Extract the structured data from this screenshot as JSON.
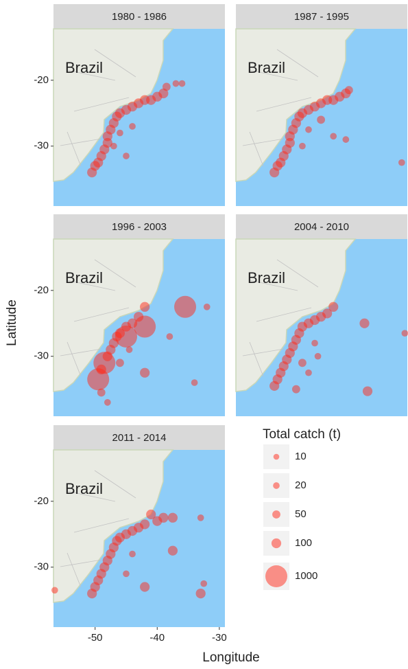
{
  "chart_data": {
    "type": "scatter",
    "x_label": "Longitude",
    "y_label": "Latitude",
    "xlim": [
      -56.7,
      -29.1
    ],
    "ylim": [
      -39.1,
      -12.2
    ],
    "xticks": [
      -50,
      -40,
      -30
    ],
    "yticks": [
      -20,
      -30
    ],
    "color": "#ff2a1a",
    "legend_title": "Total catch (t)",
    "legend_sizes": [
      10,
      20,
      50,
      100,
      1000
    ],
    "panels": [
      {
        "title": "1980 - 1986",
        "annotation": "Brazil",
        "x": [
          -50.5,
          -50,
          -49.5,
          -49,
          -48.5,
          -48,
          -48,
          -47.5,
          -47,
          -46.5,
          -46,
          -45,
          -44,
          -43,
          -42,
          -41,
          -40,
          -39,
          -38.5,
          -37,
          -36,
          -47,
          -46,
          -45,
          -44
        ],
        "y": [
          -34,
          -33,
          -32.5,
          -31.5,
          -30.5,
          -29.5,
          -28.5,
          -27.5,
          -26.5,
          -25.5,
          -25,
          -24.5,
          -24,
          -23.5,
          -23,
          -23,
          -22.5,
          -22,
          -21,
          -20.5,
          -20.5,
          -30,
          -28,
          -31.5,
          -27
        ],
        "sizes": [
          100,
          100,
          100,
          100,
          100,
          100,
          100,
          100,
          100,
          100,
          100,
          100,
          100,
          100,
          100,
          100,
          100,
          100,
          50,
          20,
          20,
          20,
          20,
          20,
          20
        ]
      },
      {
        "title": "1987 - 1995",
        "annotation": "Brazil",
        "x": [
          -50.5,
          -50,
          -49.5,
          -49,
          -48.5,
          -48,
          -48,
          -47.5,
          -47,
          -46.5,
          -46,
          -45,
          -44,
          -43,
          -42,
          -41,
          -40,
          -39,
          -38.5,
          -41,
          -39,
          -43,
          -30,
          -46,
          -45
        ],
        "y": [
          -34,
          -33,
          -32.5,
          -31.5,
          -30.5,
          -29.5,
          -28.5,
          -27.5,
          -26.5,
          -25.5,
          -25,
          -24.5,
          -24,
          -23.5,
          -23,
          -23,
          -22.5,
          -22,
          -21.5,
          -28.5,
          -29,
          -26,
          -32.5,
          -30,
          -27.5
        ],
        "sizes": [
          100,
          100,
          100,
          100,
          100,
          100,
          100,
          100,
          100,
          100,
          100,
          100,
          100,
          100,
          100,
          100,
          100,
          100,
          50,
          20,
          20,
          50,
          20,
          20,
          20
        ]
      },
      {
        "title": "1996 - 2003",
        "annotation": "Brazil",
        "x": [
          -49.5,
          -49,
          -48.5,
          -48,
          -47.5,
          -47,
          -46.5,
          -46,
          -45,
          -44,
          -43,
          -42,
          -45,
          -42,
          -42,
          -35.5,
          -32,
          -38,
          -34,
          -48,
          -49,
          -46,
          -44.5
        ],
        "y": [
          -33.5,
          -32,
          -31,
          -30,
          -29,
          -28,
          -27,
          -26.5,
          -27,
          -25,
          -24,
          -25.5,
          -25.5,
          -32.5,
          -22.5,
          -22.5,
          -22.5,
          -27,
          -34,
          -37,
          -35.5,
          -31,
          -29
        ],
        "sizes": [
          1000,
          100,
          1000,
          100,
          100,
          100,
          100,
          100,
          1000,
          100,
          100,
          1000,
          100,
          100,
          100,
          1000,
          20,
          20,
          20,
          20,
          50,
          50,
          20
        ]
      },
      {
        "title": "2004 - 2010",
        "annotation": "Brazil",
        "x": [
          -50.5,
          -50,
          -49.5,
          -49,
          -48.5,
          -48,
          -47.5,
          -47,
          -46.5,
          -46,
          -45,
          -44,
          -43,
          -42,
          -41,
          -36,
          -35.5,
          -29.5,
          -47,
          -46,
          -45,
          -44,
          -43.5
        ],
        "y": [
          -34.5,
          -33.5,
          -32.5,
          -31.5,
          -30.5,
          -29.5,
          -28.5,
          -27.5,
          -26.5,
          -25.5,
          -25,
          -24.5,
          -24,
          -23.5,
          -22.5,
          -25,
          -35.3,
          -26.5,
          -35,
          -31,
          -32.5,
          -28,
          -30
        ],
        "sizes": [
          100,
          100,
          100,
          100,
          100,
          100,
          100,
          100,
          100,
          100,
          100,
          100,
          100,
          100,
          100,
          100,
          100,
          20,
          50,
          50,
          20,
          20,
          20
        ]
      },
      {
        "title": "2011 - 2014",
        "annotation": "Brazil",
        "x": [
          -50.5,
          -50,
          -49.5,
          -49,
          -48.5,
          -48,
          -47.5,
          -47,
          -46.5,
          -46,
          -45,
          -44,
          -43,
          -42,
          -41,
          -40,
          -39,
          -42,
          -37.5,
          -37.5,
          -33,
          -33,
          -32.5,
          -56.5,
          -45,
          -44
        ],
        "y": [
          -34,
          -33,
          -32,
          -31,
          -30,
          -29,
          -28,
          -27,
          -26,
          -25.5,
          -25,
          -24.5,
          -24,
          -23.5,
          -22,
          -23,
          -22.5,
          -33,
          -27.5,
          -22.5,
          -22.5,
          -34,
          -32.5,
          -33.5,
          -31,
          -28
        ],
        "sizes": [
          100,
          100,
          100,
          100,
          100,
          100,
          100,
          100,
          100,
          100,
          100,
          100,
          100,
          100,
          100,
          100,
          100,
          100,
          100,
          100,
          20,
          100,
          20,
          20,
          20,
          20
        ]
      }
    ]
  }
}
